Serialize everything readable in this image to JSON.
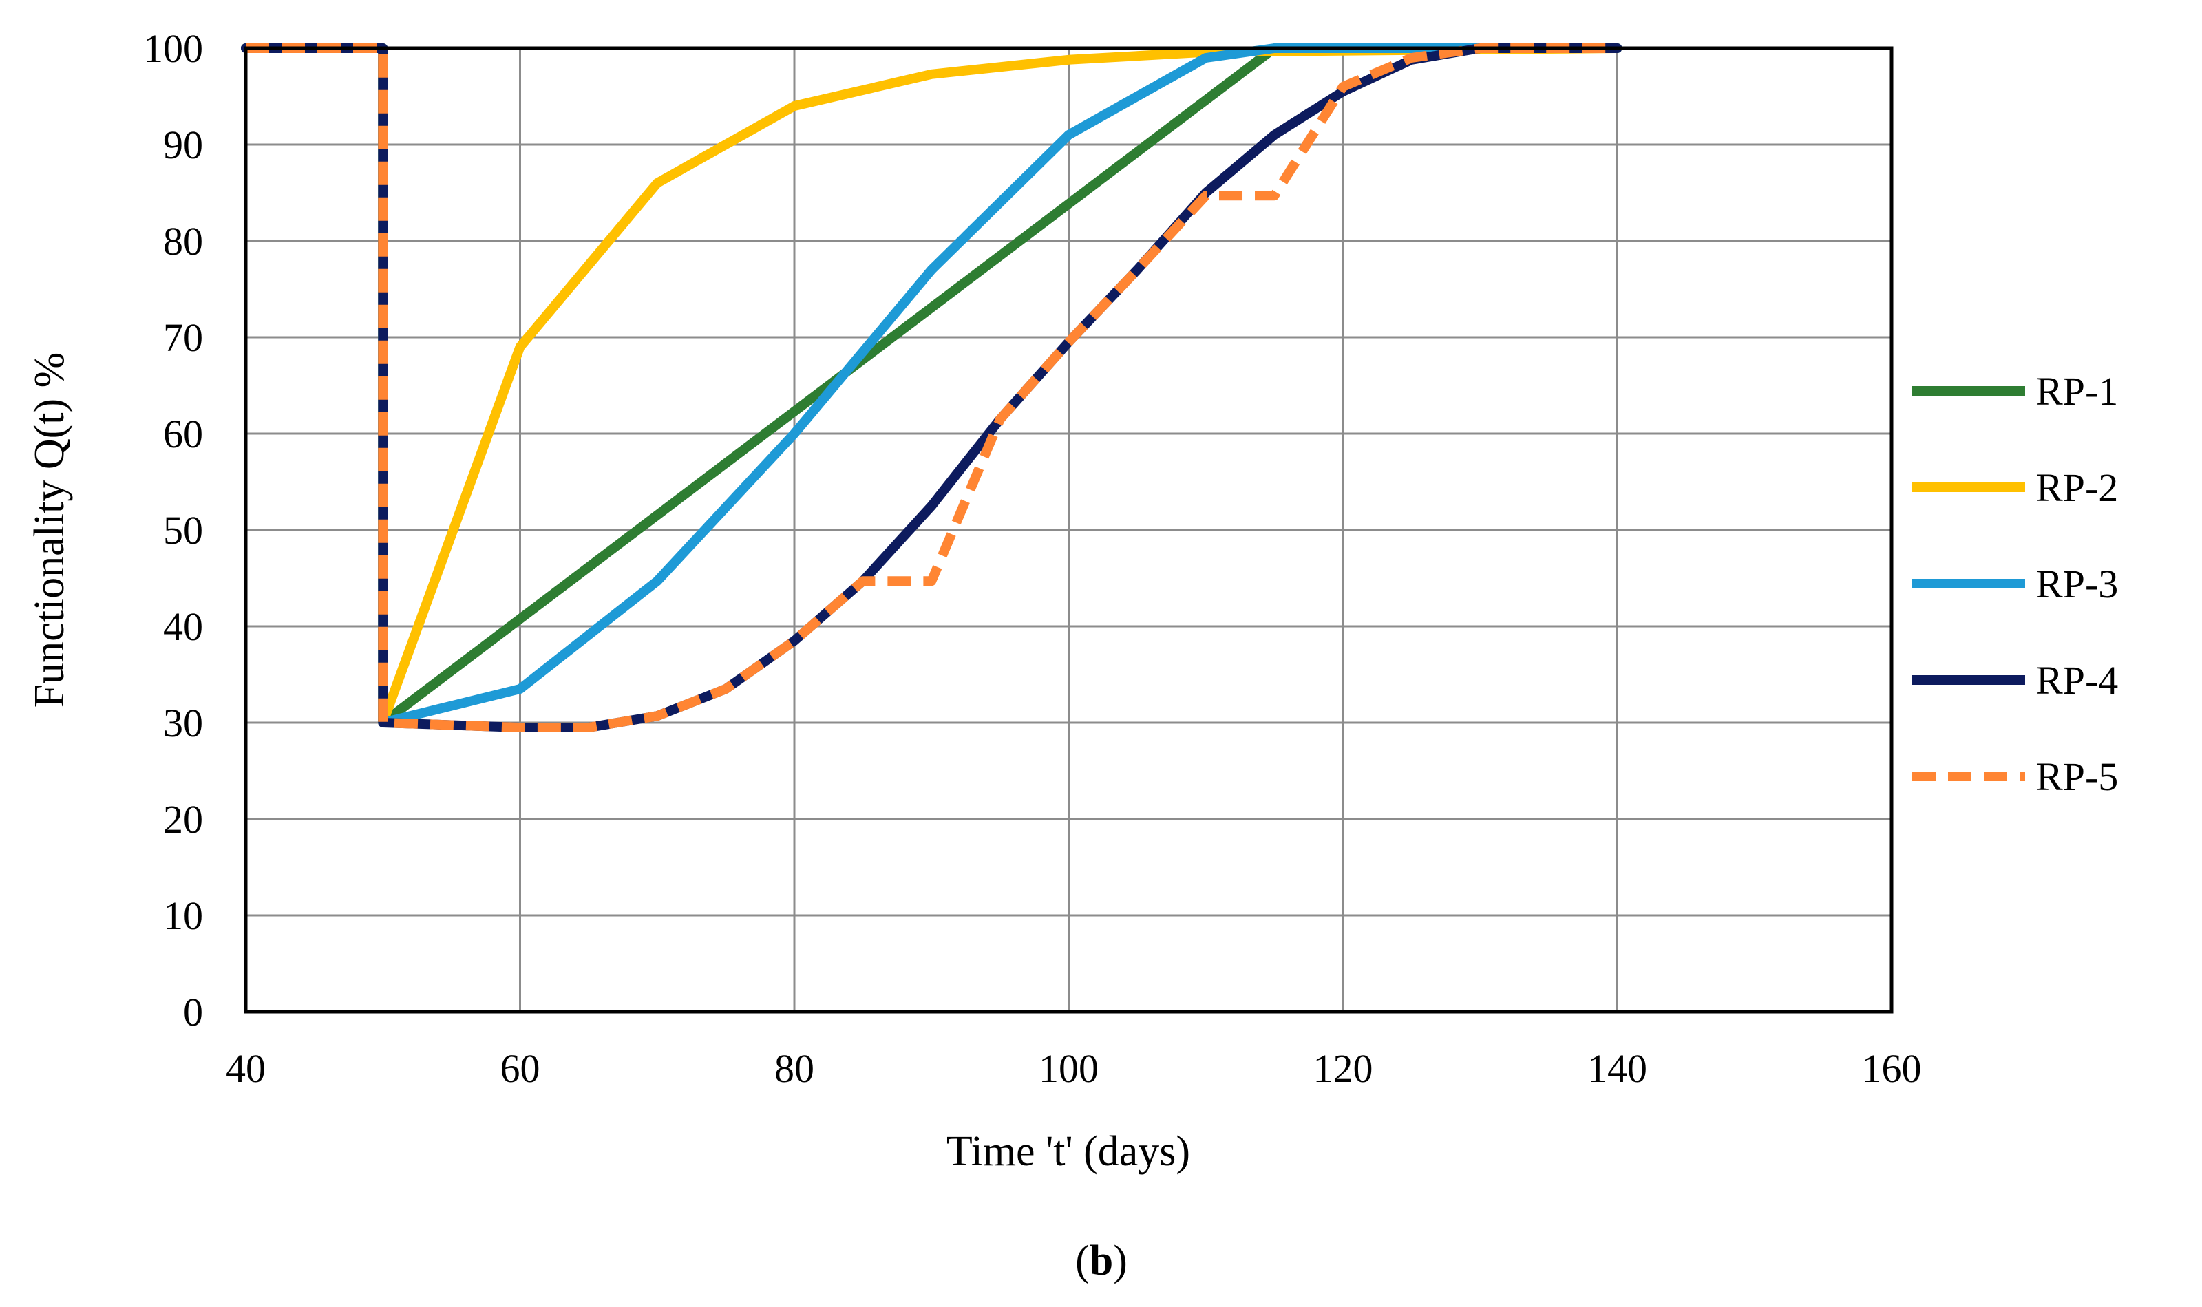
{
  "chart_data": {
    "type": "line",
    "title": "",
    "xlabel": "Time 't' (days)",
    "ylabel": "Functionality Q(t) %",
    "xlim": [
      40,
      160
    ],
    "ylim": [
      0,
      100
    ],
    "xticks": [
      40,
      60,
      80,
      100,
      120,
      140,
      160
    ],
    "yticks": [
      0,
      10,
      20,
      30,
      40,
      50,
      60,
      70,
      80,
      90,
      100
    ],
    "grid": true,
    "legend_position": "right",
    "caption_prefix": "(",
    "caption_bold": "b",
    "caption_suffix": ")",
    "series": [
      {
        "name": "RP-1",
        "color": "#2E7D32",
        "dash": "solid",
        "x": [
          40,
          50,
          50,
          115,
          140
        ],
        "y": [
          100,
          100,
          30,
          100,
          100
        ]
      },
      {
        "name": "RP-2",
        "color": "#FFC000",
        "dash": "solid",
        "x": [
          40,
          50,
          50,
          60,
          70,
          80,
          90,
          100,
          110,
          140
        ],
        "y": [
          100,
          100,
          30,
          69,
          86,
          94,
          97.3,
          98.8,
          99.6,
          100
        ]
      },
      {
        "name": "RP-3",
        "color": "#1E9AD6",
        "dash": "solid",
        "x": [
          40,
          50,
          50,
          60,
          70,
          80,
          90,
          100,
          110,
          115,
          140
        ],
        "y": [
          100,
          100,
          30,
          33.5,
          44.7,
          60,
          77,
          91,
          99,
          100,
          100
        ]
      },
      {
        "name": "RP-4",
        "color": "#0D1B5E",
        "dash": "solid",
        "x": [
          40,
          50,
          50,
          60,
          65,
          70,
          75,
          80,
          85,
          90,
          95,
          100,
          105,
          110,
          115,
          120,
          125,
          130,
          140
        ],
        "y": [
          100,
          100,
          30,
          29.5,
          29.5,
          30.7,
          33.5,
          38.5,
          44.7,
          52.5,
          61.5,
          69.5,
          77,
          85,
          91,
          95.5,
          98.8,
          100,
          100
        ]
      },
      {
        "name": "RP-5",
        "color": "#FF8533",
        "dash": "dashed",
        "x": [
          40,
          50,
          50,
          60,
          65,
          70,
          75,
          80,
          85,
          90,
          95,
          100,
          105,
          110,
          115,
          120,
          125,
          130,
          140
        ],
        "y": [
          100,
          100,
          30,
          29.5,
          29.5,
          30.7,
          33.5,
          38.5,
          44.7,
          44.7,
          61.5,
          69.5,
          77,
          84.7,
          84.7,
          96,
          99,
          100,
          100
        ]
      }
    ]
  }
}
